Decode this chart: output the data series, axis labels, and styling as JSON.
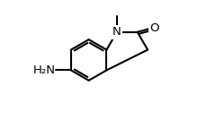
{
  "background": "#ffffff",
  "line_color": "#000000",
  "lw": 1.5,
  "dbo": 0.018,
  "font_size": 9.5,
  "label_N": "N",
  "label_O": "O",
  "label_NH2": "H₂N",
  "xlim": [
    0.0,
    1.0
  ],
  "ylim": [
    0.05,
    0.95
  ]
}
